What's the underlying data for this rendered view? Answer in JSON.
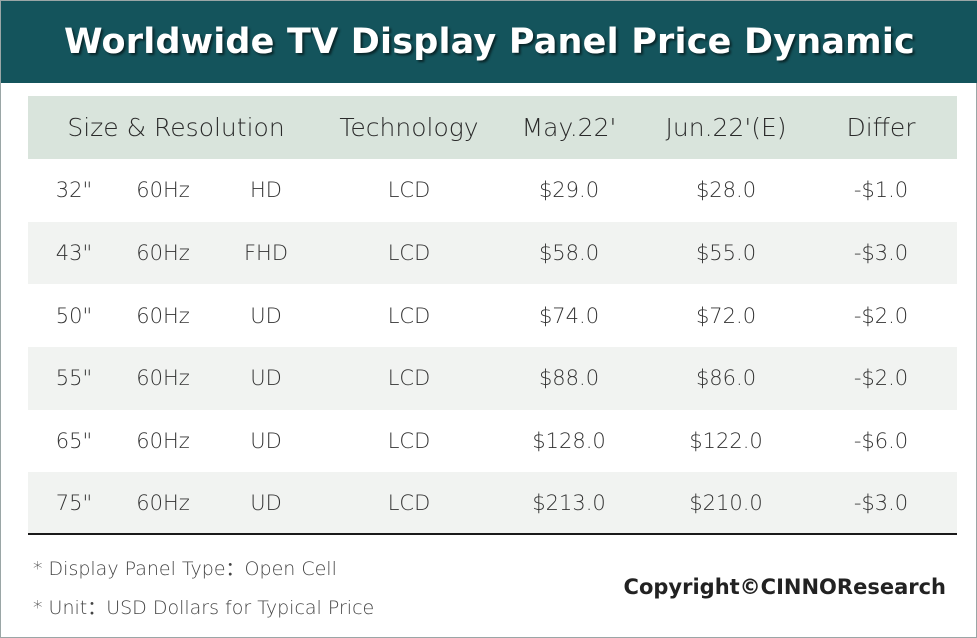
{
  "title": "Worldwide TV Display Panel Price Dynamic",
  "colors": {
    "title_bar": "#14545c",
    "header_row": "#d9e4dc",
    "shaded_row": "#f1f3f1"
  },
  "table": {
    "headers": {
      "size_resolution": "Size & Resolution",
      "technology": "Technology",
      "may": "May.22'",
      "jun": "Jun.22'(E)",
      "differ": "Differ"
    },
    "rows": [
      {
        "size": "32\"",
        "refresh": "60Hz",
        "resolution": "HD",
        "technology": "LCD",
        "may": "$29.0",
        "jun": "$28.0",
        "differ": "-$1.0"
      },
      {
        "size": "43\"",
        "refresh": "60Hz",
        "resolution": "FHD",
        "technology": "LCD",
        "may": "$58.0",
        "jun": "$55.0",
        "differ": "-$3.0"
      },
      {
        "size": "50\"",
        "refresh": "60Hz",
        "resolution": "UD",
        "technology": "LCD",
        "may": "$74.0",
        "jun": "$72.0",
        "differ": "-$2.0"
      },
      {
        "size": "55\"",
        "refresh": "60Hz",
        "resolution": "UD",
        "technology": "LCD",
        "may": "$88.0",
        "jun": "$86.0",
        "differ": "-$2.0"
      },
      {
        "size": "65\"",
        "refresh": "60Hz",
        "resolution": "UD",
        "technology": "LCD",
        "may": "$128.0",
        "jun": "$122.0",
        "differ": "-$6.0"
      },
      {
        "size": "75\"",
        "refresh": "60Hz",
        "resolution": "UD",
        "technology": "LCD",
        "may": "$213.0",
        "jun": "$210.0",
        "differ": "-$3.0"
      }
    ]
  },
  "footnotes": {
    "panel_type": "* Display Panel Type：Open Cell",
    "unit": "* Unit：USD Dollars for Typical Price"
  },
  "copyright": "Copyright©CINNOResearch"
}
